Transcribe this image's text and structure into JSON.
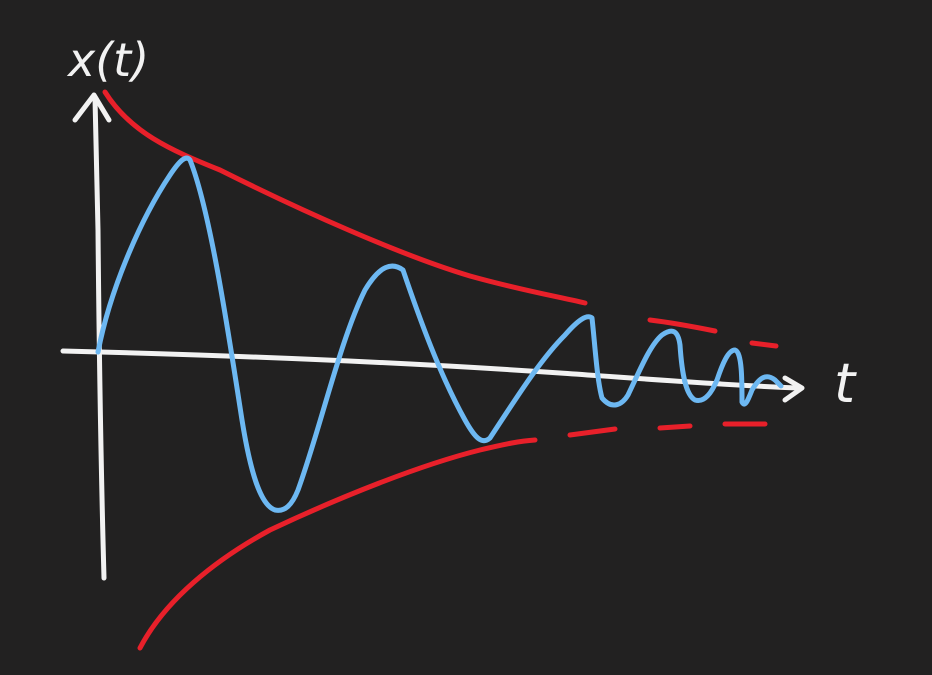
{
  "labels": {
    "y_axis": "x(t)",
    "x_axis": "t"
  },
  "colors": {
    "background": "#222121",
    "axes": "#f2f2f2",
    "envelope": "#e8202a",
    "signal": "#6db8f2"
  }
}
